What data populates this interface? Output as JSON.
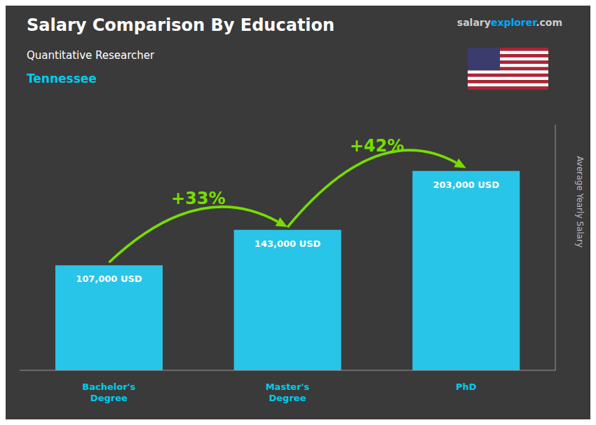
{
  "chart_data": {
    "type": "bar",
    "title": "Salary Comparison By Education",
    "subtitle": "Quantitative Researcher",
    "location": "Tennessee",
    "watermark": [
      "salary",
      "explorer",
      ".com"
    ],
    "categories": [
      "Bachelor's\nDegree",
      "Master's\nDegree",
      "PhD"
    ],
    "values": [
      107000,
      143000,
      203000
    ],
    "value_labels": [
      "107,000 USD",
      "143,000 USD",
      "203,000 USD"
    ],
    "data_labels": true,
    "color": "#29c5e8",
    "ylabel": "Average Yearly Salary",
    "ylim": [
      0,
      250000
    ],
    "tick_labels": "x",
    "grid": false,
    "annotations": [
      {
        "text": "+33%",
        "color": "#77dd00"
      },
      {
        "text": "+42%",
        "color": "#77dd00"
      }
    ]
  }
}
